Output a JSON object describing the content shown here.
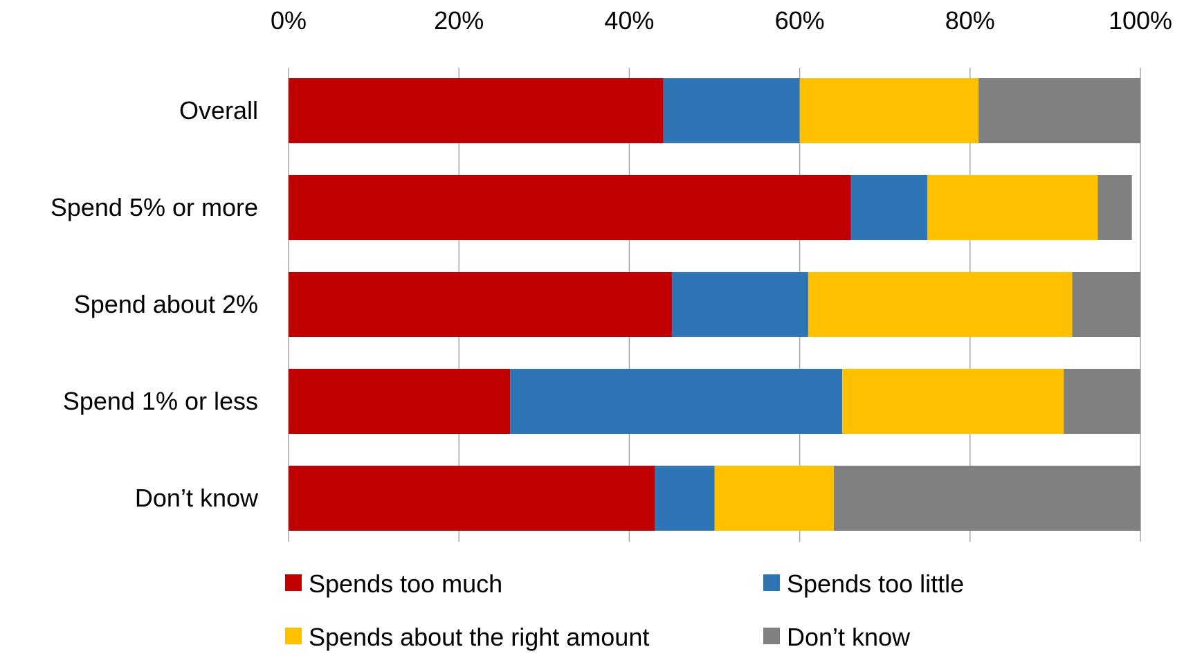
{
  "chart_data": {
    "type": "bar",
    "orientation": "horizontal",
    "stacked": true,
    "categories": [
      "Overall",
      "Spend 5% or more",
      "Spend about 2%",
      "Spend 1% or less",
      "Don’t know"
    ],
    "series": [
      {
        "name": "Spends too much",
        "color": "#c00000",
        "values": [
          44,
          66,
          45,
          26,
          43
        ]
      },
      {
        "name": "Spends too little",
        "color": "#2e75b6",
        "values": [
          16,
          9,
          16,
          39,
          7
        ]
      },
      {
        "name": "Spends about the right amount",
        "color": "#ffc000",
        "values": [
          21,
          20,
          31,
          26,
          14
        ]
      },
      {
        "name": "Don’t know",
        "color": "#808080",
        "values": [
          19,
          4,
          8,
          9,
          36
        ]
      }
    ],
    "x_ticks": [
      "0%",
      "20%",
      "40%",
      "60%",
      "80%",
      "100%"
    ],
    "xlim": [
      0,
      100
    ],
    "x_axis_position": "top",
    "grid": true,
    "legend_position": "bottom"
  }
}
